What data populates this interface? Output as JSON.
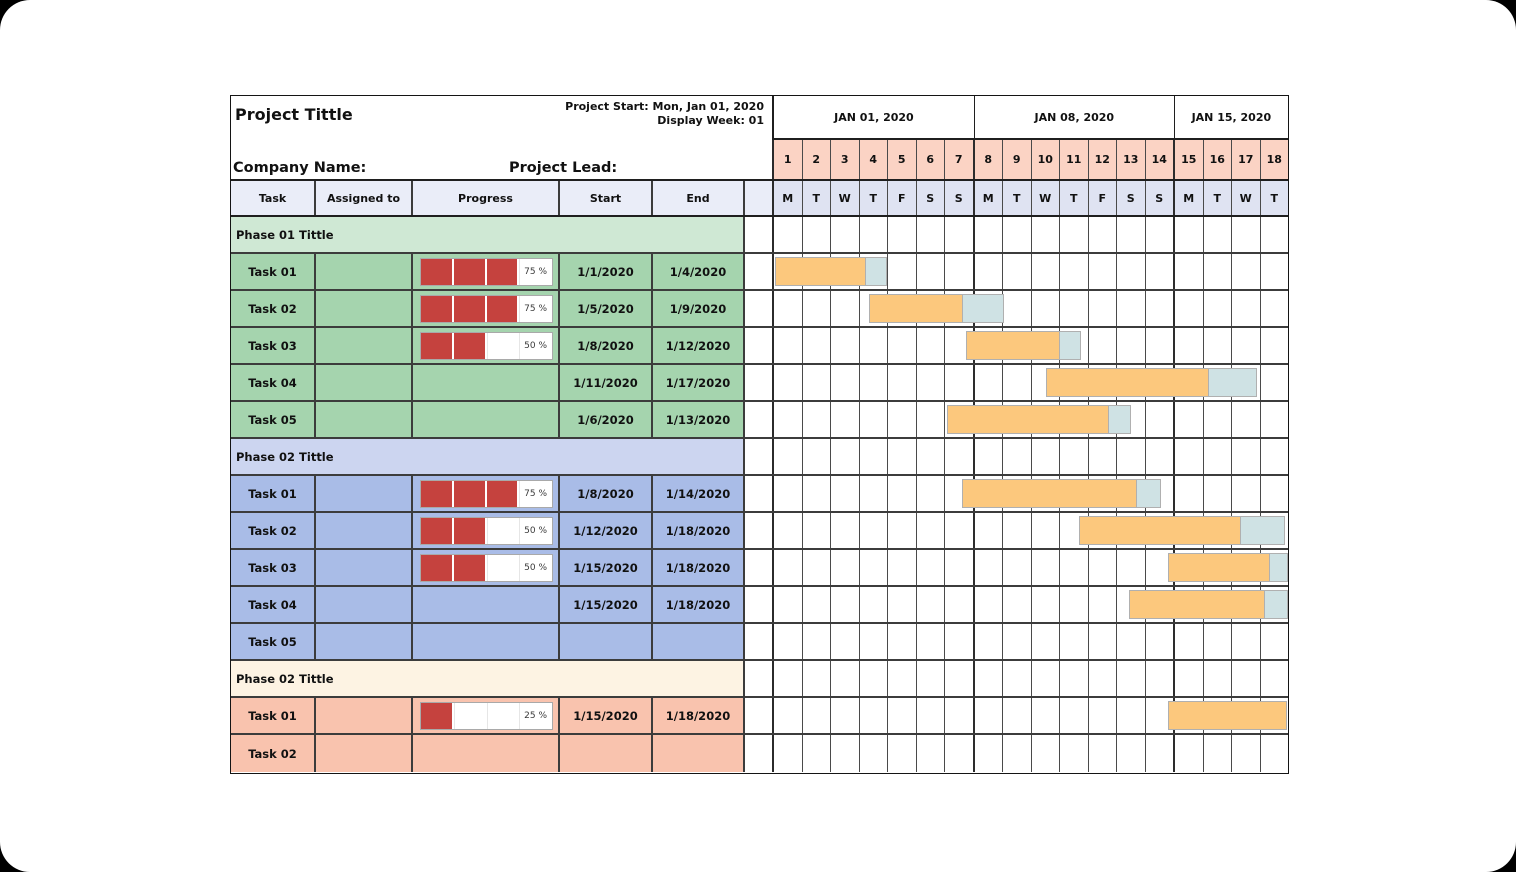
{
  "header": {
    "project_title": "Project Tittle",
    "project_start": "Project Start: Mon, Jan 01, 2020",
    "display_week": "Display Week: 01",
    "company_name": "Company Name:",
    "project_lead": "Project Lead:"
  },
  "table_columns": [
    "Task",
    "Assigned to",
    "Progress",
    "Start",
    "End"
  ],
  "calendar": {
    "weeks": [
      {
        "label": "JAN 01, 2020",
        "days": 7
      },
      {
        "label": "JAN 08, 2020",
        "days": 7
      },
      {
        "label": "JAN 15, 2020",
        "days": 4
      }
    ],
    "day_numbers": [
      "1",
      "2",
      "3",
      "4",
      "5",
      "6",
      "7",
      "8",
      "9",
      "10",
      "11",
      "12",
      "13",
      "14",
      "15",
      "16",
      "17",
      "18"
    ],
    "day_letters": [
      "M",
      "T",
      "W",
      "T",
      "F",
      "S",
      "S",
      "M",
      "T",
      "W",
      "T",
      "F",
      "S",
      "S",
      "M",
      "T",
      "W",
      "T"
    ]
  },
  "chart_data": {
    "type": "bar",
    "subtype": "gantt",
    "title": "Project Tittle",
    "timeline": "Jan 01, 2020 - Jan 18, 2020",
    "total_days": 18,
    "phases": [
      {
        "title": "Phase 01 Tittle",
        "theme": "phase1",
        "tasks": [
          {
            "name": "Task 01",
            "assigned": "",
            "progress_pct": 75,
            "progress_label": "75 %",
            "start": "1/1/2020",
            "end": "1/4/2020",
            "bar": {
              "start_day": 0.05,
              "done_days": 3.16,
              "remain_days": 0.76
            }
          },
          {
            "name": "Task 02",
            "assigned": "",
            "progress_pct": 75,
            "progress_label": "75 %",
            "start": "1/5/2020",
            "end": "1/9/2020",
            "bar": {
              "start_day": 3.31,
              "done_days": 3.3,
              "remain_days": 1.45
            }
          },
          {
            "name": "Task 03",
            "assigned": "",
            "progress_pct": 50,
            "progress_label": "50 %",
            "start": "1/8/2020",
            "end": "1/12/2020",
            "bar": {
              "start_day": 6.73,
              "done_days": 3.3,
              "remain_days": 0.72
            }
          },
          {
            "name": "Task 04",
            "assigned": "",
            "progress_pct": null,
            "progress_label": "",
            "start": "1/11/2020",
            "end": "1/17/2020",
            "bar": {
              "start_day": 9.54,
              "done_days": 5.7,
              "remain_days": 1.67
            }
          },
          {
            "name": "Task 05",
            "assigned": "",
            "progress_pct": null,
            "progress_label": "",
            "start": "1/6/2020",
            "end": "1/13/2020",
            "bar": {
              "start_day": 6.07,
              "done_days": 5.67,
              "remain_days": 0.75
            }
          }
        ]
      },
      {
        "title": "Phase 02 Tittle",
        "theme": "phase2",
        "tasks": [
          {
            "name": "Task 01",
            "assigned": "",
            "progress_pct": 75,
            "progress_label": "75 %",
            "start": "1/8/2020",
            "end": "1/14/2020",
            "bar": {
              "start_day": 6.58,
              "done_days": 6.12,
              "remain_days": 0.84
            }
          },
          {
            "name": "Task 02",
            "assigned": "",
            "progress_pct": 50,
            "progress_label": "50 %",
            "start": "1/12/2020",
            "end": "1/18/2020",
            "bar": {
              "start_day": 10.69,
              "done_days": 5.66,
              "remain_days": 1.56
            }
          },
          {
            "name": "Task 03",
            "assigned": "",
            "progress_pct": 50,
            "progress_label": "50 %",
            "start": "1/15/2020",
            "end": "1/18/2020",
            "bar": {
              "start_day": 13.79,
              "done_days": 3.57,
              "remain_days": 0.64
            }
          },
          {
            "name": "Task 04",
            "assigned": "",
            "progress_pct": null,
            "progress_label": "",
            "start": "1/15/2020",
            "end": "1/18/2020",
            "bar": {
              "start_day": 12.43,
              "done_days": 4.76,
              "remain_days": 0.87
            }
          },
          {
            "name": "Task 05",
            "assigned": "",
            "progress_pct": null,
            "progress_label": "",
            "start": "",
            "end": "",
            "bar": null
          }
        ]
      },
      {
        "title": "Phase 02 Tittle",
        "theme": "phase3",
        "tasks": [
          {
            "name": "Task 01",
            "assigned": "",
            "progress_pct": 25,
            "progress_label": "25 %",
            "start": "1/15/2020",
            "end": "1/18/2020",
            "bar": {
              "start_day": 13.79,
              "done_days": 4.17,
              "remain_days": 0
            }
          },
          {
            "name": "Task 02",
            "assigned": "",
            "progress_pct": null,
            "progress_label": "",
            "start": "",
            "end": "",
            "bar": null
          }
        ]
      }
    ]
  },
  "colors": {
    "phase_themes": {
      "phase1": {
        "header_bg": "#cfe8d4",
        "row_bg": "#a5d4ae"
      },
      "phase2": {
        "header_bg": "#ccd5f0",
        "row_bg": "#a9bce7"
      },
      "phase3": {
        "header_bg": "#fdf3e3",
        "row_bg": "#f9c3ae"
      }
    },
    "day_number_bg": "#fbd3c4",
    "day_letter_bg": "#dfe3f2",
    "column_header_bg": "#eaedf8",
    "bar_done": "#fcc87d",
    "bar_remaining": "#cfe2e4",
    "progress_fill": "#c5423e"
  }
}
